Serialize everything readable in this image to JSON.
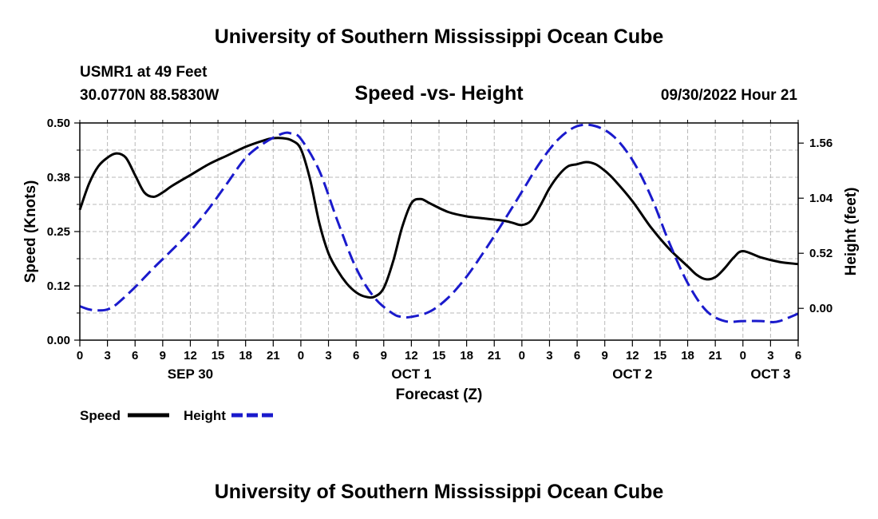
{
  "header": {
    "title": "University of Southern Mississippi Ocean Cube",
    "station": "USMR1 at 49 Feet",
    "coords": "30.0770N  88.5830W",
    "datetime": "09/30/2022 Hour 21",
    "footer_title": "University of Southern Mississippi Ocean Cube"
  },
  "colors": {
    "speed": "#000000",
    "height": "#1a1acc",
    "grid": "#b8b8b8"
  },
  "chart_data": {
    "type": "line",
    "title": "Speed -vs- Height",
    "xlabel": "Forecast (Z)",
    "ylabel": "Speed (Knots)",
    "y2label": "Height (feet)",
    "x_range_hours": [
      0,
      78
    ],
    "xticks": [
      "0",
      "3",
      "6",
      "9",
      "12",
      "15",
      "18",
      "21",
      "0",
      "3",
      "6",
      "9",
      "12",
      "15",
      "18",
      "21",
      "0",
      "3",
      "6",
      "9",
      "12",
      "15",
      "18",
      "21",
      "0",
      "3",
      "6"
    ],
    "day_labels": [
      {
        "label": "SEP 30",
        "hour": 12
      },
      {
        "label": "OCT 1",
        "hour": 36
      },
      {
        "label": "OCT 2",
        "hour": 60
      },
      {
        "label": "OCT 3",
        "hour": 75
      }
    ],
    "y_left": {
      "min": 0.0,
      "max": 0.5,
      "ticks": [
        0.0,
        0.125,
        0.25,
        0.375,
        0.5
      ],
      "tick_labels": [
        "0.00",
        "0.12",
        "0.25",
        "0.38",
        "0.50"
      ]
    },
    "y_right": {
      "min": -0.3,
      "max": 1.75,
      "ticks": [
        0.0,
        0.52,
        1.04,
        1.56
      ],
      "tick_labels": [
        "0.00",
        "0.52",
        "1.04",
        "1.56"
      ]
    },
    "series": [
      {
        "name": "Speed",
        "axis": "left",
        "style": "solid",
        "x": [
          0,
          1,
          2,
          3,
          4,
          5,
          6,
          7,
          8,
          9,
          10,
          12,
          14,
          16,
          18,
          20,
          21,
          22,
          23,
          24,
          25,
          26,
          27,
          28,
          29,
          30,
          31,
          32,
          33,
          34,
          35,
          36,
          37,
          38,
          40,
          42,
          44,
          46,
          47,
          48,
          49,
          50,
          51,
          52,
          53,
          54,
          55,
          56,
          57,
          58,
          60,
          62,
          64,
          66,
          67,
          68,
          69,
          70,
          71,
          72,
          74,
          76,
          78
        ],
        "values": [
          0.3,
          0.36,
          0.4,
          0.42,
          0.43,
          0.42,
          0.38,
          0.34,
          0.33,
          0.34,
          0.355,
          0.38,
          0.405,
          0.425,
          0.445,
          0.46,
          0.465,
          0.465,
          0.46,
          0.44,
          0.37,
          0.27,
          0.2,
          0.16,
          0.13,
          0.11,
          0.1,
          0.1,
          0.12,
          0.18,
          0.26,
          0.315,
          0.325,
          0.315,
          0.295,
          0.285,
          0.28,
          0.275,
          0.27,
          0.265,
          0.275,
          0.31,
          0.35,
          0.38,
          0.4,
          0.405,
          0.41,
          0.405,
          0.39,
          0.37,
          0.32,
          0.26,
          0.21,
          0.17,
          0.15,
          0.14,
          0.145,
          0.165,
          0.19,
          0.205,
          0.19,
          0.18,
          0.175
        ]
      },
      {
        "name": "Height",
        "axis": "right",
        "style": "dashed",
        "x": [
          0,
          1,
          2,
          3,
          4,
          6,
          8,
          10,
          12,
          14,
          16,
          18,
          20,
          22,
          23,
          24,
          26,
          28,
          30,
          32,
          34,
          35,
          36,
          38,
          40,
          42,
          44,
          46,
          48,
          50,
          52,
          54,
          56,
          58,
          60,
          62,
          64,
          66,
          68,
          70,
          72,
          74,
          75,
          76,
          78
        ],
        "values": [
          0.02,
          -0.01,
          -0.02,
          -0.01,
          0.04,
          0.2,
          0.38,
          0.55,
          0.73,
          0.94,
          1.18,
          1.42,
          1.56,
          1.65,
          1.65,
          1.6,
          1.3,
          0.82,
          0.38,
          0.1,
          -0.05,
          -0.08,
          -0.08,
          -0.03,
          0.1,
          0.3,
          0.55,
          0.82,
          1.1,
          1.38,
          1.6,
          1.72,
          1.72,
          1.62,
          1.4,
          1.06,
          0.62,
          0.24,
          -0.02,
          -0.12,
          -0.12,
          -0.12,
          -0.13,
          -0.12,
          -0.05
        ]
      }
    ]
  },
  "legend": {
    "speed_label": "Speed",
    "height_label": "Height"
  }
}
